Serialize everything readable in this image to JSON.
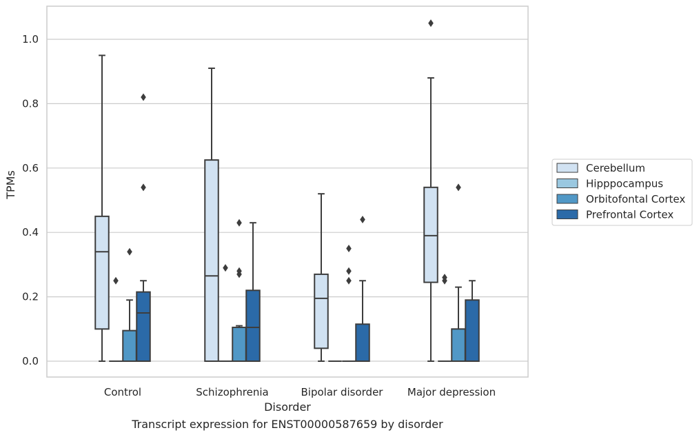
{
  "caption": "Transcript expression for ENST00000587659 by disorder",
  "chart_data": {
    "type": "box",
    "xlabel": "Disorder",
    "ylabel": "TPMs",
    "ylim": [
      -0.05,
      1.1
    ],
    "yticks": [
      0.0,
      0.2,
      0.4,
      0.6,
      0.8,
      1.0
    ],
    "ytick_labels": [
      "0.0",
      "0.2",
      "0.4",
      "0.6",
      "0.8",
      "1.0"
    ],
    "grid": "horizontal",
    "legend_position": "right",
    "categories": [
      "Control",
      "Schizophrenia",
      "Bipolar disorder",
      "Major depression"
    ],
    "series": [
      {
        "name": "Cerebellum",
        "color": "#d1e2f2",
        "boxes": [
          {
            "whisker_low": 0.0,
            "q1": 0.1,
            "median": 0.34,
            "q3": 0.45,
            "whisker_high": 0.95,
            "outliers": []
          },
          {
            "whisker_low": 0.0,
            "q1": 0.0,
            "median": 0.265,
            "q3": 0.625,
            "whisker_high": 0.91,
            "outliers": []
          },
          {
            "whisker_low": 0.0,
            "q1": 0.04,
            "median": 0.195,
            "q3": 0.27,
            "whisker_high": 0.52,
            "outliers": []
          },
          {
            "whisker_low": 0.0,
            "q1": 0.245,
            "median": 0.39,
            "q3": 0.54,
            "whisker_high": 0.88,
            "outliers": [
              1.05
            ]
          }
        ]
      },
      {
        "name": "Hipppocampus",
        "color": "#9ac8e0",
        "boxes": [
          {
            "whisker_low": 0.0,
            "q1": 0.0,
            "median": 0.0,
            "q3": 0.0,
            "whisker_high": 0.0,
            "outliers": [
              0.25
            ]
          },
          {
            "whisker_low": 0.0,
            "q1": 0.0,
            "median": 0.0,
            "q3": 0.0,
            "whisker_high": 0.0,
            "outliers": [
              0.29
            ]
          },
          {
            "whisker_low": 0.0,
            "q1": 0.0,
            "median": 0.0,
            "q3": 0.0,
            "whisker_high": 0.0,
            "outliers": []
          },
          {
            "whisker_low": 0.0,
            "q1": 0.0,
            "median": 0.0,
            "q3": 0.0,
            "whisker_high": 0.0,
            "outliers": [
              0.25,
              0.26
            ]
          }
        ]
      },
      {
        "name": "Orbitofontal Cortex",
        "color": "#5198c6",
        "boxes": [
          {
            "whisker_low": 0.0,
            "q1": 0.0,
            "median": 0.0,
            "q3": 0.095,
            "whisker_high": 0.19,
            "outliers": [
              0.34
            ]
          },
          {
            "whisker_low": 0.0,
            "q1": 0.0,
            "median": 0.0,
            "q3": 0.105,
            "whisker_high": 0.11,
            "outliers": [
              0.27,
              0.28,
              0.43
            ]
          },
          {
            "whisker_low": 0.0,
            "q1": 0.0,
            "median": 0.0,
            "q3": 0.0,
            "whisker_high": 0.0,
            "outliers": [
              0.25,
              0.28,
              0.35
            ]
          },
          {
            "whisker_low": 0.0,
            "q1": 0.0,
            "median": 0.0,
            "q3": 0.1,
            "whisker_high": 0.23,
            "outliers": [
              0.54
            ]
          }
        ]
      },
      {
        "name": "Prefrontal Cortex",
        "color": "#2b6aa8",
        "boxes": [
          {
            "whisker_low": 0.0,
            "q1": 0.0,
            "median": 0.15,
            "q3": 0.215,
            "whisker_high": 0.25,
            "outliers": [
              0.54,
              0.82
            ]
          },
          {
            "whisker_low": 0.0,
            "q1": 0.0,
            "median": 0.105,
            "q3": 0.22,
            "whisker_high": 0.43,
            "outliers": []
          },
          {
            "whisker_low": 0.0,
            "q1": 0.0,
            "median": 0.0,
            "q3": 0.115,
            "whisker_high": 0.25,
            "outliers": [
              0.44
            ]
          },
          {
            "whisker_low": 0.0,
            "q1": 0.0,
            "median": 0.0,
            "q3": 0.19,
            "whisker_high": 0.25,
            "outliers": []
          }
        ]
      }
    ]
  }
}
